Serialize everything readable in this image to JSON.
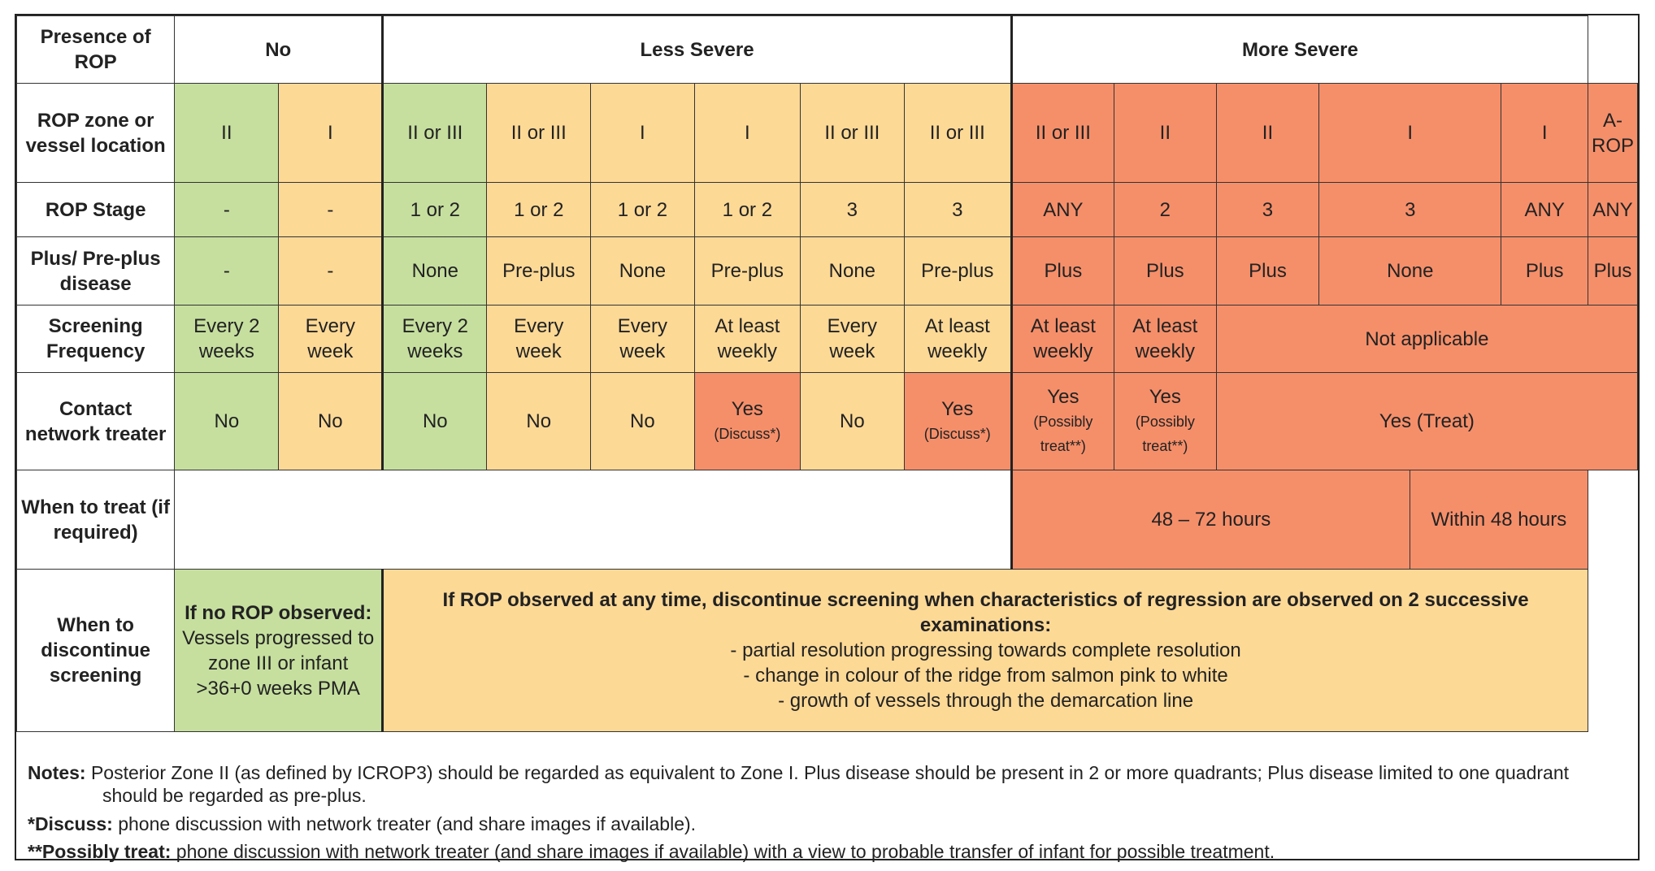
{
  "groups": {
    "presence": "Presence of ROP",
    "no": "No",
    "less": "Less Severe",
    "more": "More Severe"
  },
  "row_labels": {
    "zone": "ROP zone or vessel location",
    "stage": "ROP Stage",
    "plus": "Plus/ Pre-plus disease",
    "freq": "Screening Frequency",
    "contact": "Contact network treater",
    "when_treat": "When to treat (if required)",
    "when_disc": "When to discontinue screening"
  },
  "zone": [
    "II",
    "I",
    "II or III",
    "II or III",
    "I",
    "I",
    "II or III",
    "II or III",
    "II or III",
    "II",
    "II",
    "I",
    "I",
    "A-ROP"
  ],
  "stage": [
    "-",
    "-",
    "1 or 2",
    "1 or 2",
    "1 or 2",
    "1 or 2",
    "3",
    "3",
    "ANY",
    "2",
    "3",
    "3",
    "ANY",
    "ANY"
  ],
  "plus": [
    "-",
    "-",
    "None",
    "Pre-plus",
    "None",
    "Pre-plus",
    "None",
    "Pre-plus",
    "Plus",
    "Plus",
    "Plus",
    "None",
    "Plus",
    "Plus"
  ],
  "freq": [
    "Every 2 weeks",
    "Every week",
    "Every 2 weeks",
    "Every week",
    "Every week",
    "At least weekly",
    "Every week",
    "At least weekly",
    "At least weekly",
    "At least weekly",
    "Not applicable"
  ],
  "contact": {
    "no": "No",
    "yes": "Yes",
    "discuss": "(Discuss*)",
    "possibly": "(Possibly treat**)",
    "treat": "Yes (Treat)"
  },
  "when_treat": {
    "a": "48 – 72 hours",
    "b": "Within 48 hours"
  },
  "discontinue": {
    "left_title": "If no ROP observed:",
    "left_body": "Vessels progressed to zone III or infant >36+0 weeks PMA",
    "right_title": "If ROP observed at any time, discontinue screening when characteristics of regression are observed on 2 successive examinations:",
    "bullets": [
      "- partial resolution progressing towards complete resolution",
      "- change in colour of the ridge from salmon pink to white",
      "- growth of vessels through the demarcation line"
    ]
  },
  "notes": {
    "n1_label": "Notes:",
    "n1_text": " Posterior Zone II (as defined by ICROP3) should be regarded as equivalent to Zone I. Plus disease should be present in 2 or more quadrants; Plus disease limited to one quadrant should be regarded as pre-plus.",
    "n2_label": "*Discuss:",
    "n2_text": " phone discussion with network treater (and share images if available).",
    "n3_label": "**Possibly treat:",
    "n3_text": " phone discussion with network treater (and share images if available) with a view to probable transfer of infant for possible treatment."
  },
  "colors": {
    "green": "#c6df9f",
    "yellow": "#fdd996",
    "red": "#f58f6a"
  }
}
